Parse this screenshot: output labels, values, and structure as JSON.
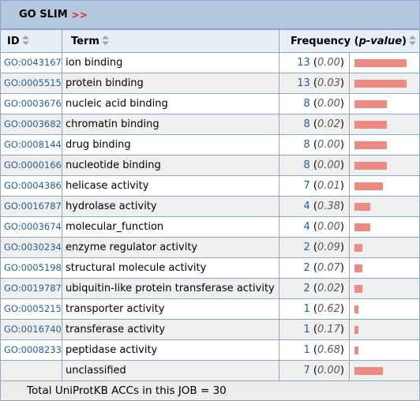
{
  "panel": {
    "title": "GO SLIM",
    "title_link": ">>"
  },
  "headers": {
    "id": "ID",
    "term": "Term",
    "frequency_prefix": "Frequency (",
    "frequency_italic": "p-value",
    "frequency_suffix": ")"
  },
  "colors": {
    "bar": "#ec8a84",
    "link": "#2a5d96",
    "title_bg": "#b4c7e0",
    "border": "#8fa6c2"
  },
  "max_count": 13,
  "rows": [
    {
      "id": "GO:0043167",
      "term": "ion binding",
      "count": "13",
      "pvalue": "0.00"
    },
    {
      "id": "GO:0005515",
      "term": "protein binding",
      "count": "13",
      "pvalue": "0.03"
    },
    {
      "id": "GO:0003676",
      "term": "nucleic acid binding",
      "count": "8",
      "pvalue": "0.00"
    },
    {
      "id": "GO:0003682",
      "term": "chromatin binding",
      "count": "8",
      "pvalue": "0.02"
    },
    {
      "id": "GO:0008144",
      "term": "drug binding",
      "count": "8",
      "pvalue": "0.00"
    },
    {
      "id": "GO:0000166",
      "term": "nucleotide binding",
      "count": "8",
      "pvalue": "0.00"
    },
    {
      "id": "GO:0004386",
      "term": "helicase activity",
      "count": "7",
      "pvalue": "0.01"
    },
    {
      "id": "GO:0016787",
      "term": "hydrolase activity",
      "count": "4",
      "pvalue": "0.38"
    },
    {
      "id": "GO:0003674",
      "term": "molecular_function",
      "count": "4",
      "pvalue": "0.00"
    },
    {
      "id": "GO:0030234",
      "term": "enzyme regulator activity",
      "count": "2",
      "pvalue": "0.09"
    },
    {
      "id": "GO:0005198",
      "term": "structural molecule activity",
      "count": "2",
      "pvalue": "0.07"
    },
    {
      "id": "GO:0019787",
      "term": "ubiquitin-like protein transferase activity",
      "count": "2",
      "pvalue": "0.02"
    },
    {
      "id": "GO:0005215",
      "term": "transporter activity",
      "count": "1",
      "pvalue": "0.62"
    },
    {
      "id": "GO:0016740",
      "term": "transferase activity",
      "count": "1",
      "pvalue": "0.17"
    },
    {
      "id": "GO:0008233",
      "term": "peptidase activity",
      "count": "1",
      "pvalue": "0.68"
    },
    {
      "id": "",
      "term": "unclassified",
      "count": "7",
      "pvalue": "0.00"
    }
  ],
  "footer": {
    "total_text": "Total UniProtKB ACCs in this JOB = 30"
  }
}
